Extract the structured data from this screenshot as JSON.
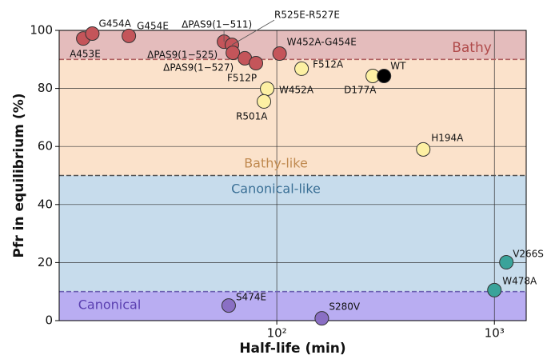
{
  "chart_data": {
    "type": "scatter",
    "x_label": "Half-life (min)",
    "y_label": "Pfr in equilibrium (%)",
    "xscale": "log",
    "xlim": [
      10,
      1400
    ],
    "ylim": [
      0,
      100
    ],
    "xticks": [
      {
        "value": 100,
        "label": "10²"
      },
      {
        "value": 1000,
        "label": "10³"
      }
    ],
    "yticks": [
      0,
      20,
      40,
      60,
      80,
      100
    ],
    "grid": true,
    "regions": [
      {
        "label": "Bathy",
        "range": [
          90,
          100
        ],
        "color": "#e4bcbc",
        "label_color": "#b04a4a",
        "line_color": "#b06060"
      },
      {
        "label": "Bathy-like",
        "range": [
          50,
          90
        ],
        "color": "#fbe2cb",
        "label_color": "#c08a50",
        "line_color": "#555555"
      },
      {
        "label": "Canonical-like",
        "range": [
          10,
          50
        ],
        "color": "#c7dcec",
        "label_color": "#3a6f95",
        "line_color": "#6a5fb0"
      },
      {
        "label": "Canonical",
        "range": [
          0,
          10
        ],
        "color": "#b9adf2",
        "label_color": "#5a3fb0",
        "line_color": "#6a5fb0"
      }
    ],
    "points": [
      {
        "label": "A453E",
        "x": 12.9,
        "y": 97.2,
        "color": "#c4555a"
      },
      {
        "label": "G454A",
        "x": 14.2,
        "y": 98.9,
        "color": "#c4555a"
      },
      {
        "label": "G454E",
        "x": 20.9,
        "y": 98.1,
        "color": "#c4555a"
      },
      {
        "label": "ΔPAS9(1−511)",
        "x": 57.2,
        "y": 96.1,
        "color": "#c4555a"
      },
      {
        "label": "R525E-R527E",
        "x": 62.2,
        "y": 95.0,
        "color": "#c4555a"
      },
      {
        "label": "ΔPAS9(1−525)",
        "x": 62.8,
        "y": 92.3,
        "color": "#c4555a"
      },
      {
        "label": "ΔPAS9(1−527)",
        "x": 71.3,
        "y": 90.4,
        "color": "#c4555a"
      },
      {
        "label": "F512P",
        "x": 80.2,
        "y": 88.7,
        "color": "#c4555a"
      },
      {
        "label": "W452A-G454E",
        "x": 103,
        "y": 92.0,
        "color": "#c4555a"
      },
      {
        "label": "F512A",
        "x": 130,
        "y": 86.8,
        "color": "#fdf0a3"
      },
      {
        "label": "W452A",
        "x": 90.3,
        "y": 79.9,
        "color": "#fdf0a3"
      },
      {
        "label": "R501A",
        "x": 87.3,
        "y": 75.5,
        "color": "#fdf0a3"
      },
      {
        "label": "D177A",
        "x": 276,
        "y": 84.3,
        "color": "#fdf0a3"
      },
      {
        "label": "WT",
        "x": 311,
        "y": 84.3,
        "color": "#000000"
      },
      {
        "label": "H194A",
        "x": 471,
        "y": 59.0,
        "color": "#fdf0a3"
      },
      {
        "label": "V266S",
        "x": 1135,
        "y": 20.1,
        "color": "#3aa39a"
      },
      {
        "label": "W478A",
        "x": 1000,
        "y": 10.5,
        "color": "#3aa39a"
      },
      {
        "label": "S474E",
        "x": 60.1,
        "y": 5.2,
        "color": "#8a6fc4"
      },
      {
        "label": "S280V",
        "x": 161,
        "y": 0.8,
        "color": "#8a6fc4"
      }
    ]
  }
}
